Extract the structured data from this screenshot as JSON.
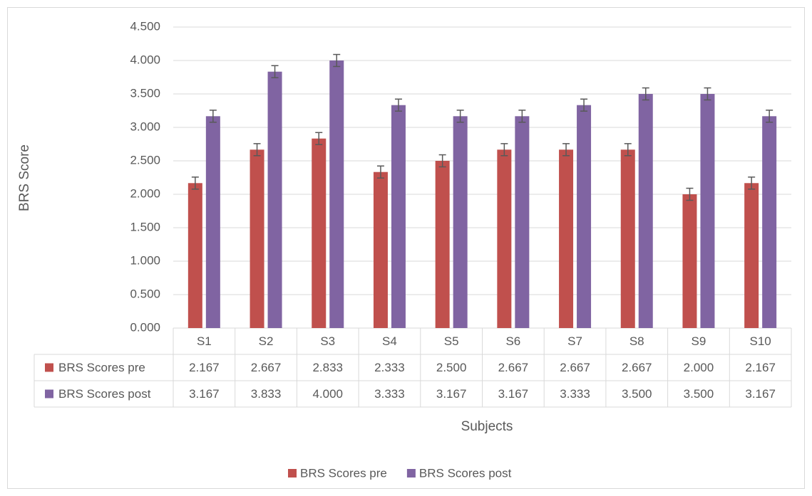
{
  "chart_data": {
    "type": "bar",
    "y_label": "BRS Score",
    "x_label": "Subjects",
    "categories": [
      "S1",
      "S2",
      "S3",
      "S4",
      "S5",
      "S6",
      "S7",
      "S8",
      "S9",
      "S10"
    ],
    "series": [
      {
        "name": "BRS Scores pre",
        "color": "#c0504d",
        "values": [
          2.167,
          2.667,
          2.833,
          2.333,
          2.5,
          2.667,
          2.667,
          2.667,
          2,
          2.167
        ],
        "value_labels": [
          "2.167",
          "2.667",
          "2.833",
          "2.333",
          "2.500",
          "2.667",
          "2.667",
          "2.667",
          "2.000",
          "2.167"
        ],
        "errors": [
          0.09,
          0.09,
          0.09,
          0.09,
          0.09,
          0.09,
          0.09,
          0.09,
          0.09,
          0.09
        ]
      },
      {
        "name": "BRS Scores post",
        "color": "#8064a2",
        "values": [
          3.167,
          3.833,
          4,
          3.333,
          3.167,
          3.167,
          3.333,
          3.5,
          3.5,
          3.167
        ],
        "value_labels": [
          "3.167",
          "3.833",
          "4.000",
          "3.333",
          "3.167",
          "3.167",
          "3.333",
          "3.500",
          "3.500",
          "3.167"
        ],
        "errors": [
          0.09,
          0.09,
          0.09,
          0.09,
          0.09,
          0.09,
          0.09,
          0.09,
          0.09,
          0.09
        ]
      }
    ],
    "ylim": [
      0,
      4.5
    ],
    "yticks": [
      {
        "value": 0,
        "label": "0.000"
      },
      {
        "value": 0.5,
        "label": "0.500"
      },
      {
        "value": 1,
        "label": "1.000"
      },
      {
        "value": 1.5,
        "label": "1.500"
      },
      {
        "value": 2,
        "label": "2.000"
      },
      {
        "value": 2.5,
        "label": "2.500"
      },
      {
        "value": 3,
        "label": "3.000"
      },
      {
        "value": 3.5,
        "label": "3.500"
      },
      {
        "value": 4,
        "label": "4.000"
      },
      {
        "value": 4.5,
        "label": "4.500"
      }
    ],
    "grid": true,
    "legend": "bottom",
    "data_table": true
  }
}
